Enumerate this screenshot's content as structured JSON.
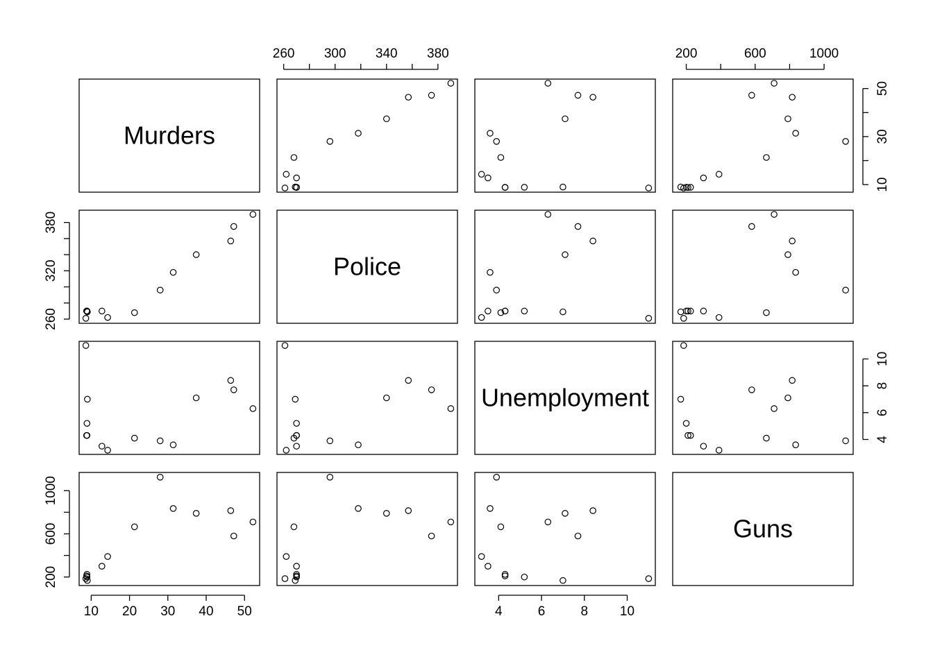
{
  "chart_data": {
    "type": "scatter",
    "variables": [
      "Murders",
      "Police",
      "Unemployment",
      "Guns"
    ],
    "layout": "scatterplot-matrix",
    "ranges": {
      "Murders": [
        8.6,
        52.2
      ],
      "Police": [
        260,
        390
      ],
      "Unemployment": [
        3.2,
        11.0
      ],
      "Guns": [
        160,
        1130
      ]
    },
    "ticks": {
      "Murders": [
        10,
        20,
        30,
        40,
        50
      ],
      "Police": [
        260,
        300,
        340,
        380
      ],
      "Unemployment": [
        4,
        6,
        8,
        10
      ],
      "Guns": [
        200,
        600,
        1000
      ]
    },
    "minor_ticks": {
      "Murders": [],
      "Police": [
        280,
        320,
        360
      ],
      "Unemployment": [],
      "Guns": [
        400,
        800
      ]
    },
    "tick_labels": {
      "Murders": [
        "10",
        "20",
        "30",
        "40",
        "50"
      ],
      "Police": [
        "260",
        "300",
        "340",
        "380"
      ],
      "Unemployment": [
        "4",
        "6",
        "8",
        "10"
      ],
      "Guns": [
        "200",
        "600",
        "1000"
      ]
    },
    "side_tick_labels": {
      "Murders": [
        "10",
        "30",
        "50"
      ],
      "Police": [
        "260",
        "320",
        "380"
      ],
      "Unemployment": [
        "4",
        "6",
        "8",
        "10"
      ],
      "Guns": [
        "200",
        "600",
        "1000"
      ]
    },
    "observations": [
      {
        "Murders": 52.2,
        "Police": 390,
        "Unemployment": 6.3,
        "Guns": 710
      },
      {
        "Murders": 47.2,
        "Police": 375,
        "Unemployment": 7.7,
        "Guns": 580
      },
      {
        "Murders": 46.4,
        "Police": 357,
        "Unemployment": 8.4,
        "Guns": 815
      },
      {
        "Murders": 37.4,
        "Police": 340,
        "Unemployment": 7.1,
        "Guns": 790
      },
      {
        "Murders": 31.4,
        "Police": 318,
        "Unemployment": 3.6,
        "Guns": 835
      },
      {
        "Murders": 28.0,
        "Police": 296,
        "Unemployment": 3.9,
        "Guns": 1125
      },
      {
        "Murders": 21.3,
        "Police": 268,
        "Unemployment": 4.1,
        "Guns": 665
      },
      {
        "Murders": 14.3,
        "Police": 262,
        "Unemployment": 3.2,
        "Guns": 390
      },
      {
        "Murders": 12.8,
        "Police": 270,
        "Unemployment": 3.5,
        "Guns": 300
      },
      {
        "Murders": 9.0,
        "Police": 269,
        "Unemployment": 7.0,
        "Guns": 168
      },
      {
        "Murders": 8.6,
        "Police": 261,
        "Unemployment": 11.0,
        "Guns": 185
      },
      {
        "Murders": 8.9,
        "Police": 270,
        "Unemployment": 5.2,
        "Guns": 200
      },
      {
        "Murders": 8.9,
        "Police": 270,
        "Unemployment": 4.3,
        "Guns": 225
      },
      {
        "Murders": 8.8,
        "Police": 270,
        "Unemployment": 4.3,
        "Guns": 210
      }
    ],
    "title": "",
    "grid": false,
    "legend": "none",
    "marker": "open-circle",
    "color": "#000000"
  }
}
